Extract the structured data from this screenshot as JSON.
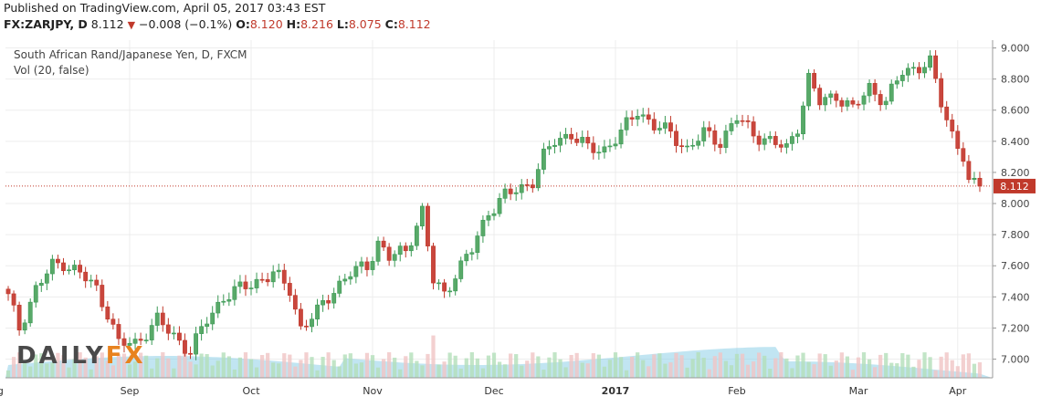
{
  "header": {
    "published": "Published on TradingView.com, April 05, 2017 03:43 EST",
    "symbol": "FX:ZARJPY, D",
    "last": "8.112",
    "change": "−0.008 (−0.1%)",
    "o_label": "O:",
    "o_value": "8.120",
    "h_label": "H:",
    "h_value": "8.216",
    "l_label": "L:",
    "l_value": "8.075",
    "c_label": "C:",
    "c_value": "8.112"
  },
  "legend": {
    "title": "South African Rand/Japanese Yen, D, FXCM",
    "indicator": "Vol (20, false)"
  },
  "watermark": {
    "part1": "DAILY",
    "part2": "FX"
  },
  "colors": {
    "up": "#3c9a56",
    "down": "#c0392b",
    "up_fill": "#58a968",
    "down_fill": "#c9463d",
    "vol_up": "#b3dfb9",
    "vol_down": "#f0c4c4",
    "vol_area": "#8ecfe8",
    "price_line": "#c0392b"
  },
  "chart_data": {
    "type": "candlestick",
    "title": "South African Rand/Japanese Yen, D, FXCM",
    "x_tick_labels": [
      "ug",
      "Sep",
      "Oct",
      "Nov",
      "Dec",
      "2017",
      "Feb",
      "Mar",
      "Apr"
    ],
    "y_tick_labels": [
      "7.000",
      "7.200",
      "7.400",
      "7.600",
      "7.800",
      "8.000",
      "8.200",
      "8.400",
      "8.600",
      "8.800",
      "9.000"
    ],
    "ylim": [
      6.88,
      9.05
    ],
    "last_price": 8.112,
    "last_price_label": "8.112",
    "anchors": [
      {
        "i": 0,
        "v": 7.4
      },
      {
        "i": 2,
        "v": 7.2
      },
      {
        "i": 5,
        "v": 7.45
      },
      {
        "i": 8,
        "v": 7.6
      },
      {
        "i": 10,
        "v": 7.62
      },
      {
        "i": 13,
        "v": 7.55
      },
      {
        "i": 16,
        "v": 7.45
      },
      {
        "i": 18,
        "v": 7.3
      },
      {
        "i": 20,
        "v": 7.1
      },
      {
        "i": 23,
        "v": 7.1
      },
      {
        "i": 27,
        "v": 7.25
      },
      {
        "i": 30,
        "v": 7.15
      },
      {
        "i": 33,
        "v": 7.05
      },
      {
        "i": 36,
        "v": 7.25
      },
      {
        "i": 39,
        "v": 7.4
      },
      {
        "i": 42,
        "v": 7.45
      },
      {
        "i": 45,
        "v": 7.5
      },
      {
        "i": 48,
        "v": 7.55
      },
      {
        "i": 51,
        "v": 7.45
      },
      {
        "i": 53,
        "v": 7.2
      },
      {
        "i": 56,
        "v": 7.3
      },
      {
        "i": 59,
        "v": 7.45
      },
      {
        "i": 62,
        "v": 7.55
      },
      {
        "i": 65,
        "v": 7.6
      },
      {
        "i": 67,
        "v": 7.75
      },
      {
        "i": 69,
        "v": 7.65
      },
      {
        "i": 72,
        "v": 7.7
      },
      {
        "i": 75,
        "v": 7.95
      },
      {
        "i": 77,
        "v": 7.5
      },
      {
        "i": 79,
        "v": 7.42
      },
      {
        "i": 81,
        "v": 7.55
      },
      {
        "i": 84,
        "v": 7.7
      },
      {
        "i": 87,
        "v": 7.95
      },
      {
        "i": 90,
        "v": 8.05
      },
      {
        "i": 93,
        "v": 8.1
      },
      {
        "i": 95,
        "v": 8.15
      },
      {
        "i": 97,
        "v": 8.3
      },
      {
        "i": 99,
        "v": 8.4
      },
      {
        "i": 102,
        "v": 8.45
      },
      {
        "i": 105,
        "v": 8.35
      },
      {
        "i": 108,
        "v": 8.35
      },
      {
        "i": 111,
        "v": 8.45
      },
      {
        "i": 114,
        "v": 8.6
      },
      {
        "i": 117,
        "v": 8.5
      },
      {
        "i": 120,
        "v": 8.45
      },
      {
        "i": 123,
        "v": 8.35
      },
      {
        "i": 126,
        "v": 8.45
      },
      {
        "i": 129,
        "v": 8.4
      },
      {
        "i": 132,
        "v": 8.55
      },
      {
        "i": 135,
        "v": 8.45
      },
      {
        "i": 138,
        "v": 8.4
      },
      {
        "i": 141,
        "v": 8.35
      },
      {
        "i": 143,
        "v": 8.5
      },
      {
        "i": 145,
        "v": 8.8
      },
      {
        "i": 147,
        "v": 8.65
      },
      {
        "i": 150,
        "v": 8.7
      },
      {
        "i": 153,
        "v": 8.6
      },
      {
        "i": 156,
        "v": 8.75
      },
      {
        "i": 159,
        "v": 8.65
      },
      {
        "i": 162,
        "v": 8.85
      },
      {
        "i": 165,
        "v": 8.88
      },
      {
        "i": 167,
        "v": 8.9
      },
      {
        "i": 169,
        "v": 8.65
      },
      {
        "i": 171,
        "v": 8.45
      },
      {
        "i": 173,
        "v": 8.3
      },
      {
        "i": 174,
        "v": 8.12
      },
      {
        "i": 176,
        "v": 8.112
      }
    ]
  }
}
